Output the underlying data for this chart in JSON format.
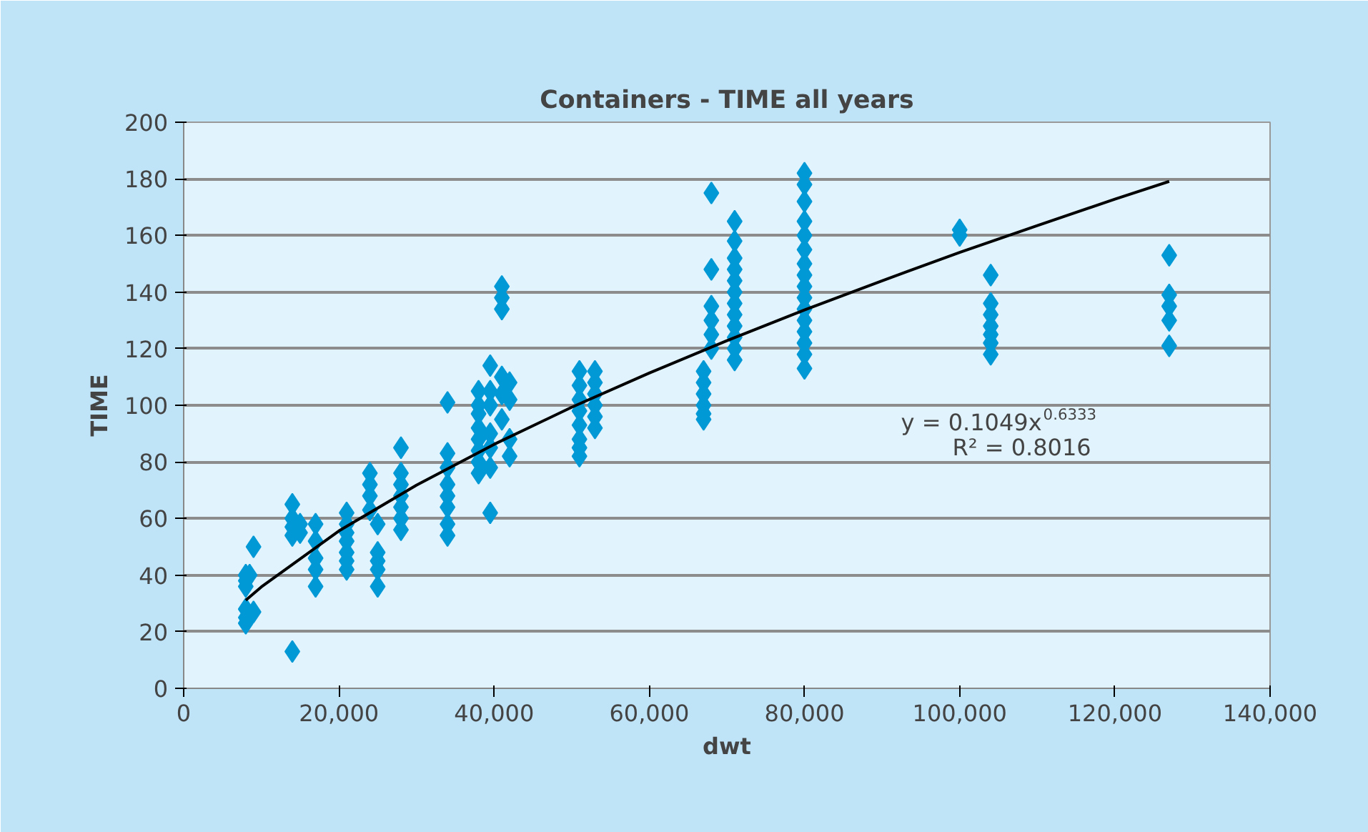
{
  "chart_data": {
    "type": "scatter",
    "title": "Containers - TIME all years",
    "xlabel": "dwt",
    "ylabel": "TIME",
    "series": [
      {
        "color": "#0099d6",
        "marker": "diamond",
        "x": [
          8000,
          8000,
          8000,
          8000,
          8000,
          8000,
          8500,
          9000,
          9000,
          14000,
          14000,
          14000,
          14000,
          14000,
          15000,
          15000,
          17000,
          17000,
          17000,
          17000,
          17000,
          21000,
          21000,
          21000,
          21000,
          21000,
          21000,
          21000,
          24000,
          24000,
          24000,
          24000,
          25000,
          25000,
          25000,
          25000,
          25000,
          28000,
          28000,
          28000,
          28000,
          28000,
          28000,
          28000,
          34000,
          34000,
          34000,
          34000,
          34000,
          34000,
          34000,
          34000,
          38000,
          38000,
          38000,
          38000,
          38000,
          38000,
          38000,
          38000,
          39500,
          39500,
          39500,
          39500,
          39500,
          39500,
          39500,
          41000,
          41000,
          41000,
          41000,
          41000,
          41000,
          42000,
          42000,
          42000,
          42000,
          51000,
          51000,
          51000,
          51000,
          51000,
          51000,
          51000,
          51000,
          53000,
          53000,
          53000,
          53000,
          53000,
          53000,
          67000,
          67000,
          67000,
          67000,
          67000,
          67000,
          68000,
          68000,
          68000,
          68000,
          68000,
          68000,
          71000,
          71000,
          71000,
          71000,
          71000,
          71000,
          71000,
          71000,
          71000,
          71000,
          71000,
          71000,
          80000,
          80000,
          80000,
          80000,
          80000,
          80000,
          80000,
          80000,
          80000,
          80000,
          80000,
          80000,
          80000,
          80000,
          80000,
          80000,
          100000,
          100000,
          104000,
          104000,
          104000,
          104000,
          104000,
          104000,
          104000,
          127000,
          127000,
          127000,
          127000,
          127000
        ],
        "values": [
          40,
          38,
          36,
          28,
          25,
          23,
          40,
          50,
          27,
          65,
          60,
          57,
          54,
          13,
          58,
          55,
          58,
          52,
          46,
          42,
          36,
          62,
          58,
          55,
          52,
          48,
          45,
          42,
          76,
          72,
          68,
          63,
          58,
          48,
          45,
          42,
          36,
          85,
          76,
          72,
          68,
          64,
          60,
          56,
          101,
          83,
          78,
          72,
          68,
          64,
          58,
          54,
          105,
          100,
          97,
          92,
          88,
          84,
          80,
          76,
          114,
          105,
          100,
          90,
          85,
          78,
          62,
          142,
          138,
          134,
          110,
          104,
          95,
          108,
          102,
          88,
          82,
          112,
          107,
          102,
          98,
          93,
          88,
          85,
          82,
          112,
          108,
          104,
          100,
          96,
          92,
          112,
          108,
          104,
          100,
          97,
          95,
          175,
          148,
          135,
          130,
          125,
          120,
          165,
          158,
          152,
          148,
          144,
          140,
          136,
          132,
          128,
          124,
          120,
          116,
          182,
          178,
          172,
          165,
          160,
          155,
          150,
          146,
          142,
          138,
          134,
          130,
          126,
          122,
          118,
          113,
          162,
          160,
          146,
          136,
          132,
          128,
          125,
          122,
          118,
          153,
          139,
          135,
          130,
          121
        ]
      },
      {
        "type": "line",
        "marker": "none",
        "color": "#000000",
        "x": [
          8000,
          10000,
          20000,
          30000,
          40000,
          50000,
          60000,
          70000,
          80000,
          90000,
          100000,
          110000,
          120000,
          127000
        ],
        "values": [
          31.1,
          35.8,
          55.6,
          71.8,
          86.2,
          99.3,
          111.4,
          122.8,
          133.7,
          144.0,
          154.0,
          163.5,
          172.8,
          179.1
        ]
      }
    ],
    "xlim": [
      0,
      140000
    ],
    "ylim": [
      0,
      200
    ],
    "xticks": [
      0,
      {
        "value": 20000,
        "label": "20,000"
      },
      {
        "value": 40000,
        "label": "40,000"
      },
      {
        "value": 60000,
        "label": "60,000"
      },
      {
        "value": 80000,
        "label": "80,000"
      },
      {
        "value": 100000,
        "label": "100,000"
      },
      {
        "value": 120000,
        "label": "120,000"
      },
      {
        "value": 140000,
        "label": "140,000"
      }
    ],
    "yticks": [
      0,
      20,
      40,
      60,
      80,
      100,
      120,
      140,
      160,
      180,
      200
    ],
    "grid": "y",
    "annotations": [
      "y = 0.1049x$^{0.6333}$",
      "R² = 0.8016"
    ]
  }
}
